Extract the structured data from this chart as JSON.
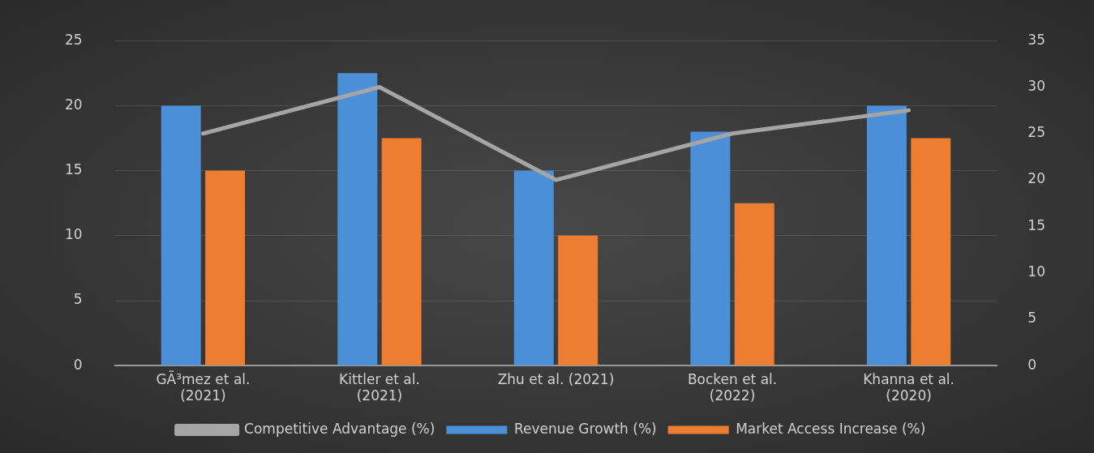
{
  "chart_data": {
    "type": "bar",
    "categories": [
      "GÃ³mez et al.\n(2021)",
      "Kittler et al.\n(2021)",
      "Zhu et al. (2021)",
      "Bocken et al.\n(2022)",
      "Khanna et al.\n(2020)"
    ],
    "series": [
      {
        "name": "Revenue Growth (%)",
        "color": "#4a8fd8",
        "values": [
          20,
          22.5,
          15,
          18,
          20
        ]
      },
      {
        "name": "Market Access Increase (%)",
        "color": "#ed7d31",
        "values": [
          15,
          17.5,
          10,
          12.5,
          17.5
        ]
      },
      {
        "name": "Competitive Advantage (%)",
        "type": "line",
        "axis": "y2",
        "color": "#a5a5a5",
        "values": [
          25,
          30,
          20,
          25,
          27.5
        ]
      }
    ],
    "ylim": [
      0,
      25
    ],
    "yticks": [
      0,
      5,
      10,
      15,
      20,
      25
    ],
    "y2lim": [
      0,
      35
    ],
    "y2ticks": [
      0,
      5,
      10,
      15,
      20,
      25,
      30,
      35
    ],
    "grid": "y",
    "legend": "bottom",
    "marker": "none",
    "line_style": "solid"
  }
}
